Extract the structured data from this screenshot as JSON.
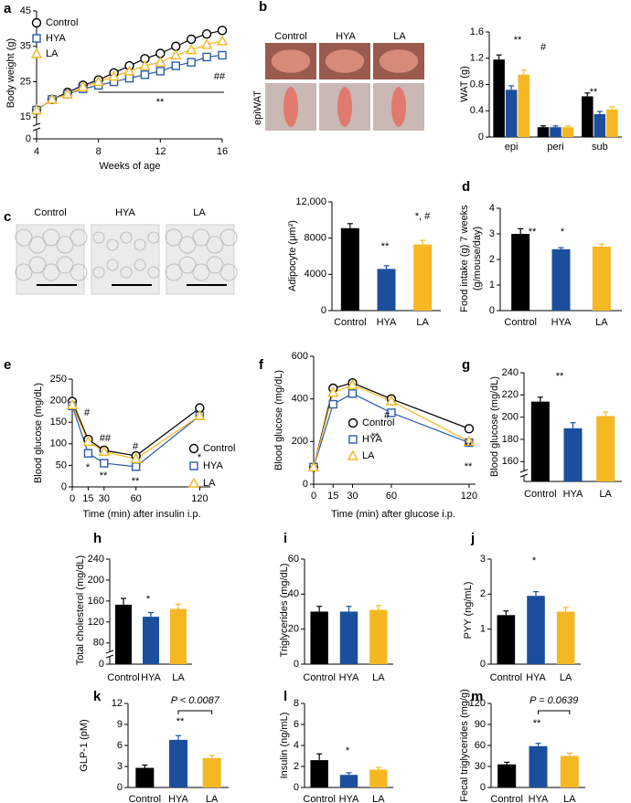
{
  "chart_data": [
    {
      "panel": "a",
      "type": "line",
      "ylabel": "Body weight (g)",
      "xlabel": "Weeks of age",
      "x": [
        4,
        5,
        6,
        7,
        8,
        9,
        10,
        11,
        12,
        13,
        14,
        15,
        16
      ],
      "xlim": [
        4,
        16
      ],
      "xticks": [
        4,
        8,
        12,
        16
      ],
      "ylim": [
        13,
        45
      ],
      "yticks": [
        15,
        25,
        35,
        45
      ],
      "y_break_label": "0",
      "series": [
        {
          "name": "Control",
          "color": "#000000",
          "marker": "circle",
          "values": [
            17,
            20,
            22,
            24,
            25.5,
            27.5,
            29.5,
            31.5,
            33,
            35,
            37,
            38.5,
            39.5
          ]
        },
        {
          "name": "HYA",
          "color": "#2a5caa",
          "marker": "square",
          "values": [
            17,
            20,
            21.5,
            23,
            24,
            25,
            26,
            27,
            28,
            29.5,
            30.5,
            32,
            32.5
          ]
        },
        {
          "name": "LA",
          "color": "#f2b71f",
          "marker": "triangle",
          "values": [
            17,
            20,
            21.5,
            23.5,
            25,
            26.5,
            28,
            29.5,
            30.5,
            32.5,
            34,
            35.5,
            36.5
          ]
        }
      ],
      "annotations": [
        "**",
        "##"
      ]
    },
    {
      "panel": "b",
      "type": "photos",
      "labels": [
        "Control",
        "HYA",
        "LA"
      ],
      "label_colors": [
        "#000000",
        "#2a5caa",
        "#f2b71f"
      ],
      "row_label": "epiWAT"
    },
    {
      "type": "bar",
      "ylabel": "WAT (g)",
      "categories": [
        "epi",
        "peri",
        "sub"
      ],
      "ylim": [
        0,
        1.6
      ],
      "yticks": [
        0,
        0.4,
        0.8,
        1.2,
        1.6
      ],
      "series": [
        {
          "name": "Control",
          "color": "#000000",
          "values": [
            1.18,
            0.15,
            0.62
          ],
          "errors": [
            0.07,
            0.02,
            0.05
          ]
        },
        {
          "name": "HYA",
          "color": "#1b4f9e",
          "values": [
            0.72,
            0.15,
            0.35
          ],
          "errors": [
            0.06,
            0.02,
            0.04
          ]
        },
        {
          "name": "LA",
          "color": "#f5b823",
          "values": [
            0.95,
            0.15,
            0.42
          ],
          "errors": [
            0.07,
            0.02,
            0.04
          ]
        }
      ],
      "annotations": [
        "**",
        "#",
        "**"
      ]
    },
    {
      "panel": "c",
      "type": "micrographs",
      "labels": [
        "Control",
        "HYA",
        "LA"
      ],
      "label_colors": [
        "#000000",
        "#2a5caa",
        "#f2b71f"
      ]
    },
    {
      "type": "bar",
      "ylabel": "Adipocyte (μm²)",
      "categories": [
        "Control",
        "HYA",
        "LA"
      ],
      "colors": [
        "#000000",
        "#1b4f9e",
        "#f5b823"
      ],
      "ylim": [
        0,
        12000
      ],
      "yticks": [
        0,
        4000,
        8000,
        {
          "value": 12000,
          "label": "12,000"
        }
      ],
      "values": [
        9100,
        4600,
        7300
      ],
      "errors": [
        500,
        350,
        450
      ],
      "annotations": [
        "**",
        "*, #"
      ]
    },
    {
      "panel": "d",
      "type": "bar",
      "ylabel": [
        "Food intake (g) 7 weeks",
        "(g/mouse/day)"
      ],
      "categories": [
        "Control",
        "HYA",
        "LA"
      ],
      "colors": [
        "#000000",
        "#1b4f9e",
        "#f5b823"
      ],
      "ylim": [
        0,
        4
      ],
      "yticks": [
        0,
        1,
        2,
        3,
        4
      ],
      "values": [
        3.0,
        2.4,
        2.5
      ],
      "errors": [
        0.2,
        0.06,
        0.1
      ],
      "annotations": [
        "**",
        "*"
      ]
    },
    {
      "panel": "e",
      "type": "line",
      "ylabel": "Blood glucose (mg/dL)",
      "xlabel": "Time (min) after insulin i.p.",
      "x": [
        0,
        15,
        30,
        60,
        120
      ],
      "xlim": [
        0,
        130
      ],
      "xticks": [
        0,
        15,
        30,
        60,
        120
      ],
      "ylim": [
        0,
        250
      ],
      "yticks": [
        0,
        50,
        100,
        150,
        200,
        250
      ],
      "series": [
        {
          "name": "Control",
          "color": "#000000",
          "marker": "circle",
          "values": [
            198,
            110,
            85,
            72,
            183
          ]
        },
        {
          "name": "HYA",
          "color": "#2a5caa",
          "marker": "square",
          "values": [
            188,
            78,
            55,
            47,
            165
          ]
        },
        {
          "name": "LA",
          "color": "#f2b71f",
          "marker": "triangle",
          "values": [
            190,
            105,
            82,
            65,
            165
          ]
        }
      ],
      "annotations": [
        "#",
        "##",
        "#",
        "*",
        "**",
        "**",
        "*"
      ]
    },
    {
      "panel": "f",
      "type": "line",
      "ylabel": "Blood glucose (mg/dL)",
      "xlabel": "Time (min) after glucose i.p.",
      "x": [
        0,
        15,
        30,
        60,
        120
      ],
      "xlim": [
        0,
        125
      ],
      "xticks": [
        0,
        15,
        30,
        60,
        120
      ],
      "ylim": [
        0,
        600
      ],
      "yticks": [
        0,
        200,
        400,
        600
      ],
      "series": [
        {
          "name": "Control",
          "color": "#000000",
          "marker": "circle",
          "values": [
            80,
            450,
            475,
            400,
            260
          ]
        },
        {
          "name": "HYA",
          "color": "#2a5caa",
          "marker": "square",
          "values": [
            80,
            375,
            425,
            335,
            195
          ]
        },
        {
          "name": "LA",
          "color": "#f2b71f",
          "marker": "triangle",
          "values": [
            80,
            430,
            465,
            390,
            200
          ]
        }
      ],
      "annotations": [
        "#",
        "**",
        "**",
        "**"
      ]
    },
    {
      "panel": "g",
      "type": "bar",
      "ylabel": "Blood glucose (mg/dL)",
      "categories": [
        "Control",
        "HYA",
        "LA"
      ],
      "colors": [
        "#000000",
        "#1b4f9e",
        "#f5b823"
      ],
      "ylim": [
        152,
        240
      ],
      "yticks": [
        160,
        180,
        200,
        220,
        240
      ],
      "axis_break": true,
      "values": [
        214,
        190,
        201
      ],
      "errors": [
        4,
        5,
        3.5
      ],
      "annotations": [
        "**"
      ]
    },
    {
      "panel": "h",
      "type": "bar",
      "ylabel": "Total cholesterol (mg/dL)",
      "categories": [
        "Control",
        "HYA",
        "LA"
      ],
      "colors": [
        "#000000",
        "#1b4f9e",
        "#f5b823"
      ],
      "ylim": [
        64,
        240
      ],
      "yticks": [
        80,
        120,
        160,
        200,
        240
      ],
      "y_break_label": "0",
      "values": [
        153,
        130,
        145
      ],
      "errors": [
        12,
        8,
        9
      ],
      "annotations": [
        "*"
      ]
    },
    {
      "panel": "i",
      "type": "bar",
      "ylabel": "Triglycerides (mg/dL)",
      "categories": [
        "Control",
        "HYA",
        "LA"
      ],
      "colors": [
        "#000000",
        "#1b4f9e",
        "#f5b823"
      ],
      "ylim": [
        0,
        60
      ],
      "yticks": [
        0,
        20,
        40,
        60
      ],
      "values": [
        30,
        30,
        31
      ],
      "errors": [
        3,
        3,
        2.5
      ]
    },
    {
      "panel": "j",
      "type": "bar",
      "ylabel": "PYY (ng/mL)",
      "categories": [
        "Control",
        "HYA",
        "LA"
      ],
      "colors": [
        "#000000",
        "#1b4f9e",
        "#f5b823"
      ],
      "ylim": [
        0,
        3
      ],
      "yticks": [
        0,
        1,
        2,
        3
      ],
      "values": [
        1.4,
        1.95,
        1.5
      ],
      "errors": [
        0.12,
        0.12,
        0.12
      ],
      "annotations": [
        "*"
      ]
    },
    {
      "panel": "k",
      "type": "bar",
      "ylabel": "GLP-1 (pM)",
      "categories": [
        "Control",
        "HYA",
        "LA"
      ],
      "colors": [
        "#000000",
        "#1b4f9e",
        "#f5b823"
      ],
      "ylim": [
        0,
        12
      ],
      "yticks": [
        0,
        3,
        6,
        9,
        12
      ],
      "values": [
        2.8,
        6.8,
        4.2
      ],
      "errors": [
        0.4,
        0.6,
        0.4
      ],
      "annotations": [
        "**"
      ],
      "comparison_label": "P < 0.0087"
    },
    {
      "panel": "l",
      "type": "bar",
      "ylabel": "Insulin (ng/mL)",
      "categories": [
        "Control",
        "HYA",
        "LA"
      ],
      "colors": [
        "#000000",
        "#1b4f9e",
        "#f5b823"
      ],
      "ylim": [
        0,
        8
      ],
      "yticks": [
        0,
        2,
        4,
        6,
        8
      ],
      "values": [
        2.6,
        1.2,
        1.7
      ],
      "errors": [
        0.6,
        0.2,
        0.2
      ],
      "annotations": [
        "*"
      ]
    },
    {
      "panel": "m",
      "type": "bar",
      "ylabel": "Fecal triglycerides (mg/g)",
      "categories": [
        "Control",
        "HYA",
        "LA"
      ],
      "colors": [
        "#000000",
        "#1b4f9e",
        "#f5b823"
      ],
      "ylim": [
        0,
        120
      ],
      "yticks": [
        0,
        30,
        60,
        90,
        120
      ],
      "values": [
        33,
        59,
        45
      ],
      "errors": [
        3,
        4,
        4
      ],
      "annotations": [
        "**"
      ],
      "comparison_label": "P = 0.0639"
    }
  ]
}
